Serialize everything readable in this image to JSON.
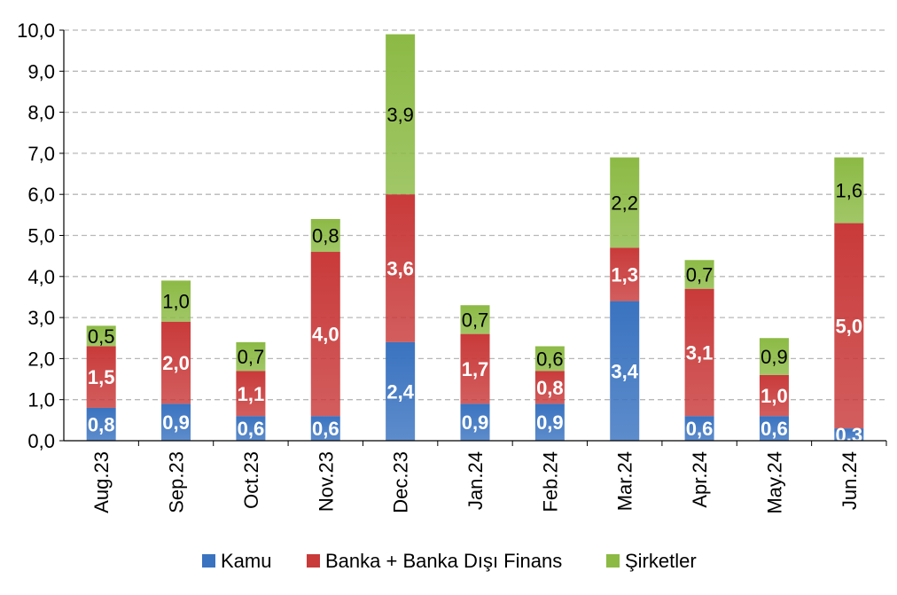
{
  "chart_data": {
    "type": "bar",
    "stacked": true,
    "categories": [
      "Aug.23",
      "Sep.23",
      "Oct.23",
      "Nov.23",
      "Dec.23",
      "Jan.24",
      "Feb.24",
      "Mar.24",
      "Apr.24",
      "May.24",
      "Jun.24"
    ],
    "series": [
      {
        "name": "Kamu",
        "color": "#3a73c0",
        "values": [
          0.8,
          0.9,
          0.6,
          0.6,
          2.4,
          0.9,
          0.9,
          3.4,
          0.6,
          0.6,
          0.3
        ],
        "labels": [
          "0,8",
          "0,9",
          "0,6",
          "0,6",
          "2,4",
          "0,9",
          "0,9",
          "3,4",
          "0,6",
          "0,6",
          "0,3"
        ]
      },
      {
        "name": "Banka + Banka Dışı Finans",
        "color": "#c93a3a",
        "values": [
          1.5,
          2.0,
          1.1,
          4.0,
          3.6,
          1.7,
          0.8,
          1.3,
          3.1,
          1.0,
          5.0
        ],
        "labels": [
          "1,5",
          "2,0",
          "1,1",
          "4,0",
          "3,6",
          "1,7",
          "0,8",
          "1,3",
          "3,1",
          "1,0",
          "5,0"
        ]
      },
      {
        "name": "Şirketler",
        "color": "#8cba45",
        "values": [
          0.5,
          1.0,
          0.7,
          0.8,
          3.9,
          0.7,
          0.6,
          2.2,
          0.7,
          0.9,
          1.6
        ],
        "labels": [
          "0,5",
          "1,0",
          "0,7",
          "0,8",
          "3,9",
          "0,7",
          "0,6",
          "2,2",
          "0,7",
          "0,9",
          "1,6"
        ]
      }
    ],
    "yticks": [
      "0,0",
      "1,0",
      "2,0",
      "3,0",
      "4,0",
      "5,0",
      "6,0",
      "7,0",
      "8,0",
      "9,0",
      "10,0"
    ],
    "ylim": [
      0,
      10
    ],
    "grid": true,
    "legend_position": "bottom"
  }
}
